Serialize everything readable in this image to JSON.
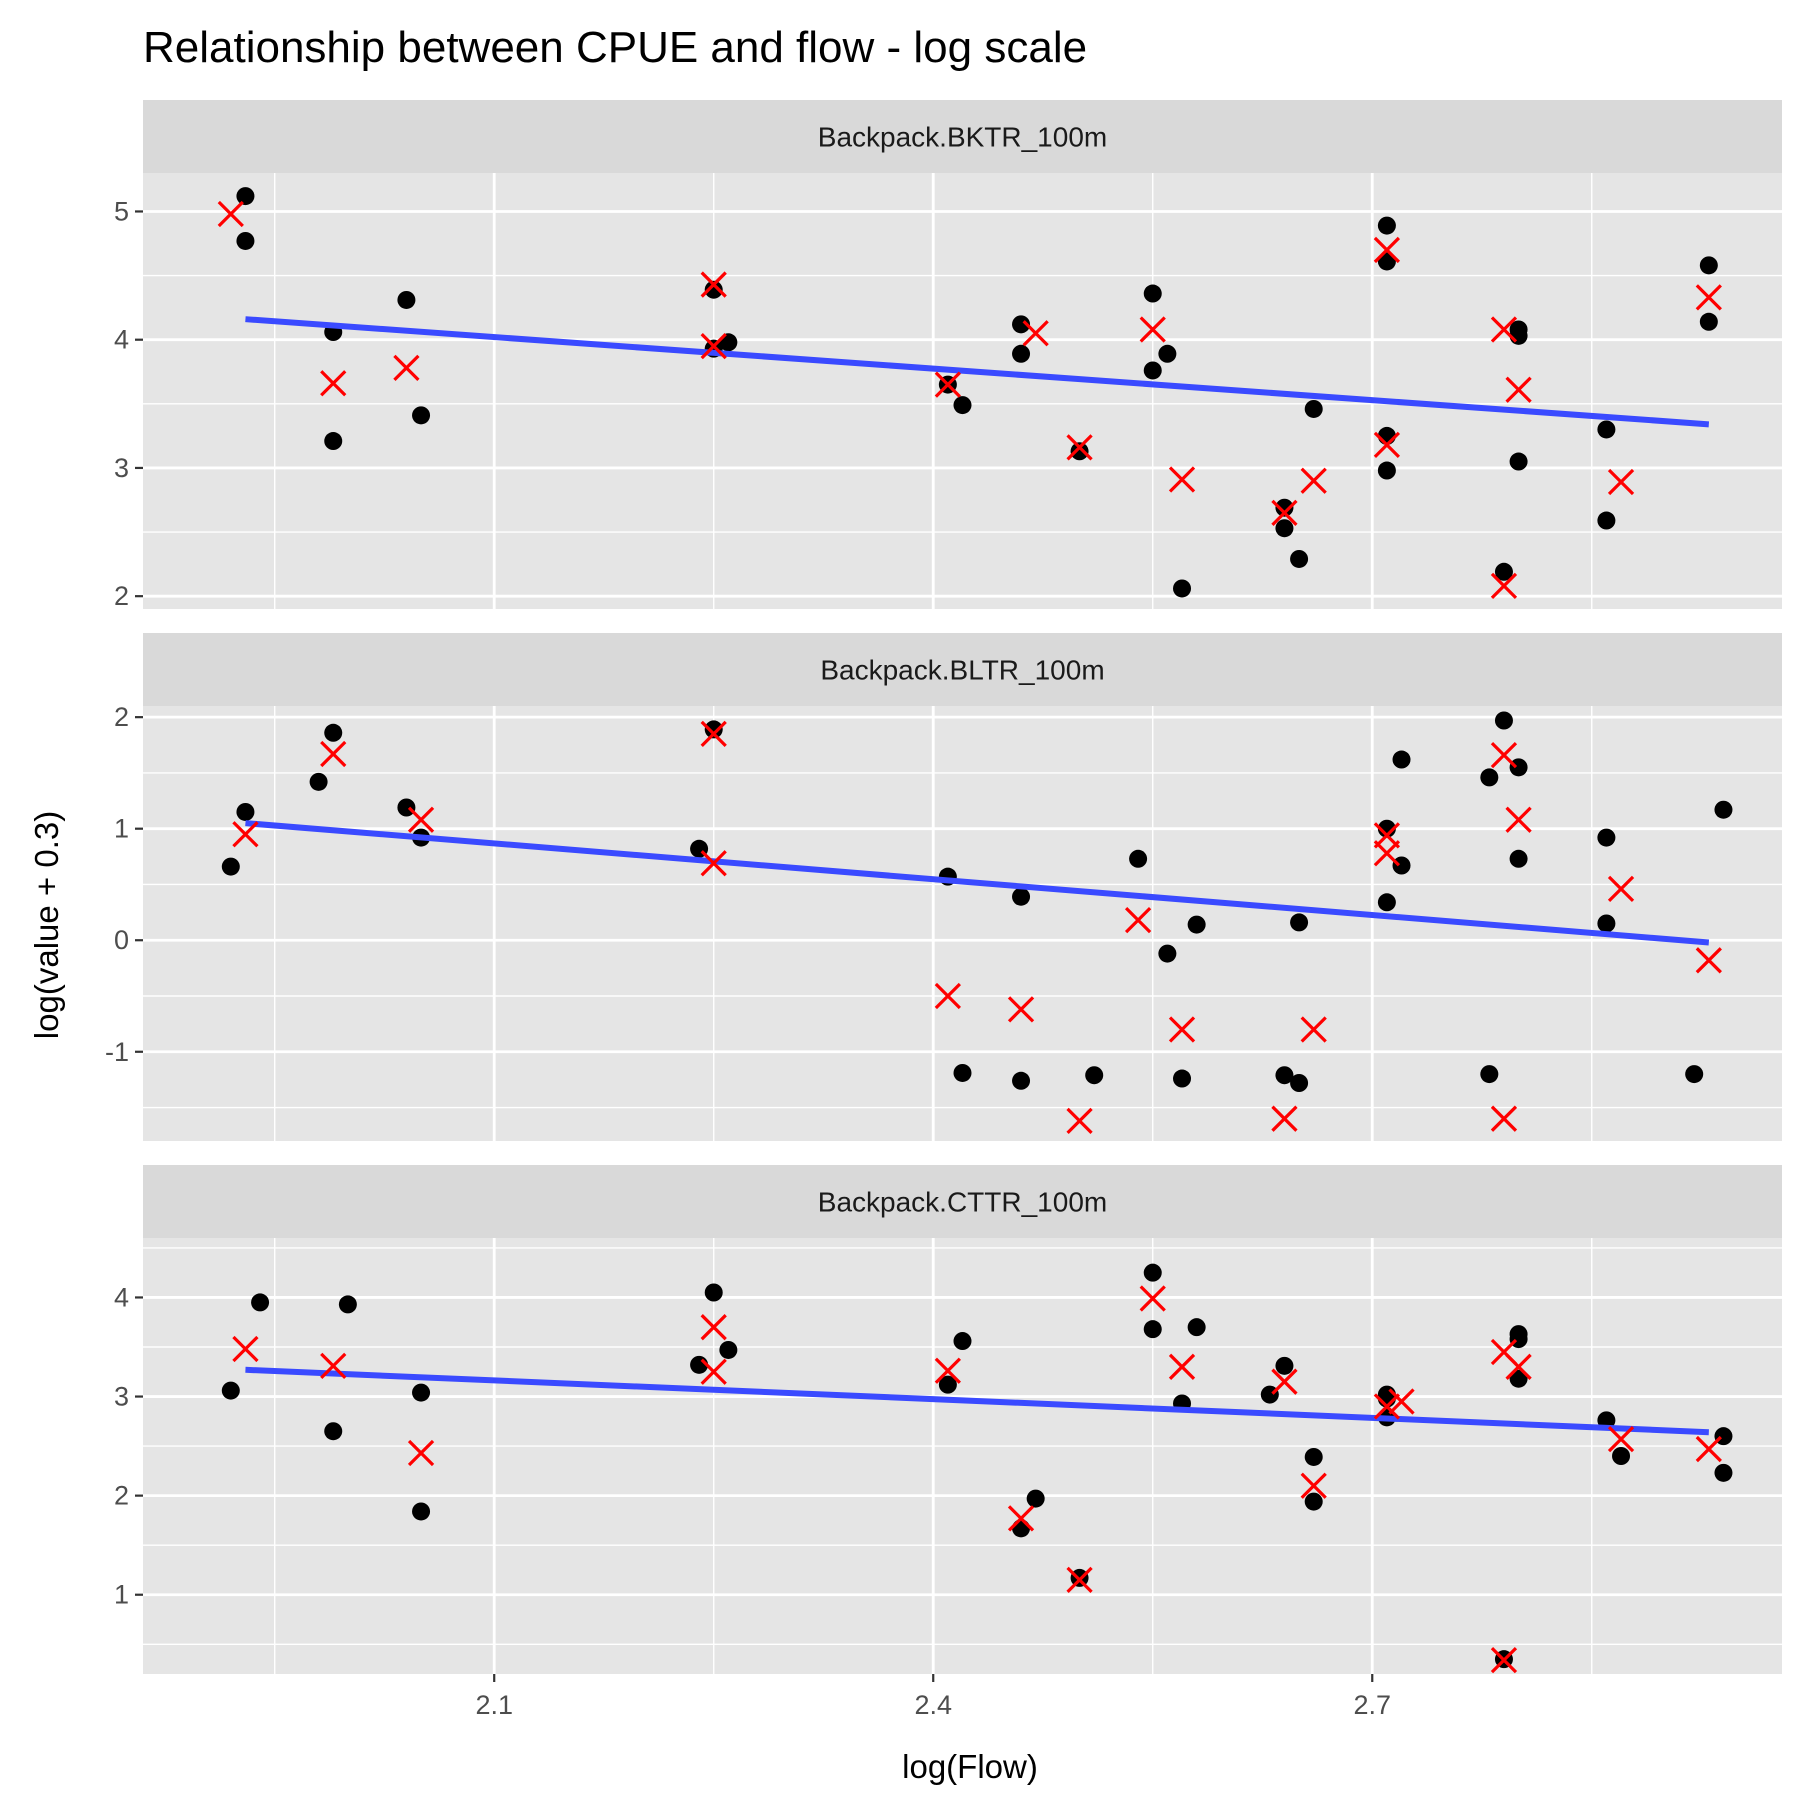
{
  "chart_data": {
    "type": "scatter",
    "title": "Relationship between CPUE and flow - log scale",
    "xlabel": "log(Flow)",
    "ylabel": "log(value + 0.3)",
    "xlim": [
      1.86,
      2.98
    ],
    "x_ticks": [
      2.1,
      2.4,
      2.7
    ],
    "x_tick_labels": [
      "2.1",
      "2.4",
      "2.7"
    ],
    "grid": true,
    "legend": "none",
    "colors": {
      "panel_bg": "#e5e5e5",
      "strip_bg": "#d9d9d9",
      "grid": "#ffffff",
      "observed": "#000000",
      "predicted": "#ff0000",
      "trend": "#3a4aff"
    },
    "panels": [
      {
        "label": "Backpack.BKTR_100m",
        "ylim": [
          1.9,
          5.3
        ],
        "y_ticks": [
          2,
          3,
          4,
          5
        ],
        "y_tick_labels": [
          "2",
          "3",
          "4",
          "5"
        ],
        "trend": {
          "x": [
            1.93,
            2.93
          ],
          "y": [
            4.16,
            3.34
          ]
        },
        "observed": [
          [
            1.93,
            5.12
          ],
          [
            1.93,
            4.77
          ],
          [
            1.99,
            4.06
          ],
          [
            1.99,
            3.21
          ],
          [
            2.04,
            4.31
          ],
          [
            2.05,
            3.41
          ],
          [
            2.25,
            4.39
          ],
          [
            2.25,
            3.93
          ],
          [
            2.26,
            3.98
          ],
          [
            2.41,
            3.65
          ],
          [
            2.42,
            3.49
          ],
          [
            2.46,
            4.12
          ],
          [
            2.46,
            3.89
          ],
          [
            2.5,
            3.13
          ],
          [
            2.55,
            4.36
          ],
          [
            2.55,
            3.76
          ],
          [
            2.56,
            3.89
          ],
          [
            2.57,
            2.06
          ],
          [
            2.64,
            2.69
          ],
          [
            2.64,
            2.53
          ],
          [
            2.65,
            2.29
          ],
          [
            2.66,
            3.46
          ],
          [
            2.71,
            2.98
          ],
          [
            2.71,
            4.89
          ],
          [
            2.71,
            4.61
          ],
          [
            2.71,
            3.25
          ],
          [
            2.79,
            2.19
          ],
          [
            2.8,
            4.08
          ],
          [
            2.8,
            4.03
          ],
          [
            2.8,
            3.05
          ],
          [
            2.86,
            2.59
          ],
          [
            2.86,
            3.3
          ],
          [
            2.93,
            4.14
          ],
          [
            2.93,
            4.58
          ]
        ],
        "predicted": [
          [
            1.92,
            4.98
          ],
          [
            1.99,
            3.66
          ],
          [
            2.04,
            3.78
          ],
          [
            2.25,
            4.43
          ],
          [
            2.25,
            3.95
          ],
          [
            2.41,
            3.65
          ],
          [
            2.47,
            4.05
          ],
          [
            2.5,
            3.16
          ],
          [
            2.55,
            4.08
          ],
          [
            2.57,
            2.91
          ],
          [
            2.64,
            2.65
          ],
          [
            2.66,
            2.9
          ],
          [
            2.71,
            4.7
          ],
          [
            2.71,
            3.18
          ],
          [
            2.79,
            4.08
          ],
          [
            2.79,
            2.08
          ],
          [
            2.8,
            3.61
          ],
          [
            2.87,
            2.89
          ],
          [
            2.93,
            4.33
          ]
        ]
      },
      {
        "label": "Backpack.BLTR_100m",
        "ylim": [
          -1.8,
          2.1
        ],
        "y_ticks": [
          -1,
          0,
          1,
          2
        ],
        "y_tick_labels": [
          "-1",
          "0",
          "1",
          "2"
        ],
        "trend": {
          "x": [
            1.93,
            2.93
          ],
          "y": [
            1.05,
            -0.02
          ]
        },
        "observed": [
          [
            1.92,
            0.66
          ],
          [
            1.93,
            1.15
          ],
          [
            1.98,
            1.42
          ],
          [
            1.99,
            1.86
          ],
          [
            2.04,
            1.19
          ],
          [
            2.05,
            0.92
          ],
          [
            2.24,
            0.82
          ],
          [
            2.25,
            1.89
          ],
          [
            2.41,
            0.57
          ],
          [
            2.42,
            -1.19
          ],
          [
            2.46,
            0.39
          ],
          [
            2.46,
            -1.26
          ],
          [
            2.51,
            -1.21
          ],
          [
            2.54,
            0.73
          ],
          [
            2.56,
            -0.12
          ],
          [
            2.57,
            -1.24
          ],
          [
            2.58,
            0.14
          ],
          [
            2.64,
            -1.21
          ],
          [
            2.65,
            0.16
          ],
          [
            2.65,
            -1.28
          ],
          [
            2.71,
            0.34
          ],
          [
            2.71,
            1.0
          ],
          [
            2.72,
            0.67
          ],
          [
            2.72,
            1.62
          ],
          [
            2.78,
            -1.2
          ],
          [
            2.78,
            1.46
          ],
          [
            2.79,
            1.97
          ],
          [
            2.8,
            1.55
          ],
          [
            2.8,
            0.73
          ],
          [
            2.86,
            0.92
          ],
          [
            2.86,
            0.15
          ],
          [
            2.92,
            -1.2
          ],
          [
            2.94,
            1.17
          ]
        ],
        "predicted": [
          [
            1.93,
            0.95
          ],
          [
            1.99,
            1.67
          ],
          [
            2.05,
            1.08
          ],
          [
            2.25,
            1.85
          ],
          [
            2.25,
            0.69
          ],
          [
            2.41,
            -0.5
          ],
          [
            2.46,
            -0.62
          ],
          [
            2.5,
            -1.62
          ],
          [
            2.54,
            0.18
          ],
          [
            2.57,
            -0.8
          ],
          [
            2.64,
            -1.6
          ],
          [
            2.66,
            -0.8
          ],
          [
            2.71,
            0.94
          ],
          [
            2.71,
            0.78
          ],
          [
            2.79,
            1.66
          ],
          [
            2.79,
            -1.6
          ],
          [
            2.8,
            1.08
          ],
          [
            2.87,
            0.46
          ],
          [
            2.93,
            -0.18
          ]
        ]
      },
      {
        "label": "Backpack.CTTR_100m",
        "ylim": [
          0.2,
          4.6
        ],
        "y_ticks": [
          1,
          2,
          3,
          4
        ],
        "y_tick_labels": [
          "1",
          "2",
          "3",
          "4"
        ],
        "trend": {
          "x": [
            1.93,
            2.93
          ],
          "y": [
            3.27,
            2.64
          ]
        },
        "observed": [
          [
            1.92,
            3.06
          ],
          [
            1.94,
            3.95
          ],
          [
            1.99,
            2.65
          ],
          [
            2.0,
            3.93
          ],
          [
            2.05,
            3.04
          ],
          [
            2.05,
            1.84
          ],
          [
            2.24,
            3.32
          ],
          [
            2.25,
            4.05
          ],
          [
            2.26,
            3.47
          ],
          [
            2.41,
            3.12
          ],
          [
            2.42,
            3.56
          ],
          [
            2.46,
            1.67
          ],
          [
            2.47,
            1.97
          ],
          [
            2.5,
            1.17
          ],
          [
            2.55,
            3.68
          ],
          [
            2.55,
            4.25
          ],
          [
            2.57,
            2.93
          ],
          [
            2.58,
            3.7
          ],
          [
            2.63,
            3.02
          ],
          [
            2.64,
            3.31
          ],
          [
            2.66,
            2.39
          ],
          [
            2.66,
            1.94
          ],
          [
            2.71,
            3.02
          ],
          [
            2.71,
            2.98
          ],
          [
            2.71,
            2.79
          ],
          [
            2.79,
            0.35
          ],
          [
            2.8,
            3.63
          ],
          [
            2.8,
            3.58
          ],
          [
            2.8,
            3.18
          ],
          [
            2.86,
            2.76
          ],
          [
            2.87,
            2.4
          ],
          [
            2.94,
            2.6
          ],
          [
            2.94,
            2.23
          ]
        ],
        "predicted": [
          [
            1.93,
            3.48
          ],
          [
            1.99,
            3.31
          ],
          [
            2.05,
            2.43
          ],
          [
            2.25,
            3.7
          ],
          [
            2.25,
            3.25
          ],
          [
            2.41,
            3.26
          ],
          [
            2.46,
            1.77
          ],
          [
            2.5,
            1.15
          ],
          [
            2.55,
            3.99
          ],
          [
            2.57,
            3.3
          ],
          [
            2.64,
            3.15
          ],
          [
            2.66,
            2.1
          ],
          [
            2.71,
            2.9
          ],
          [
            2.72,
            2.95
          ],
          [
            2.79,
            3.45
          ],
          [
            2.79,
            0.34
          ],
          [
            2.8,
            3.3
          ],
          [
            2.87,
            2.57
          ],
          [
            2.93,
            2.47
          ]
        ]
      }
    ]
  }
}
